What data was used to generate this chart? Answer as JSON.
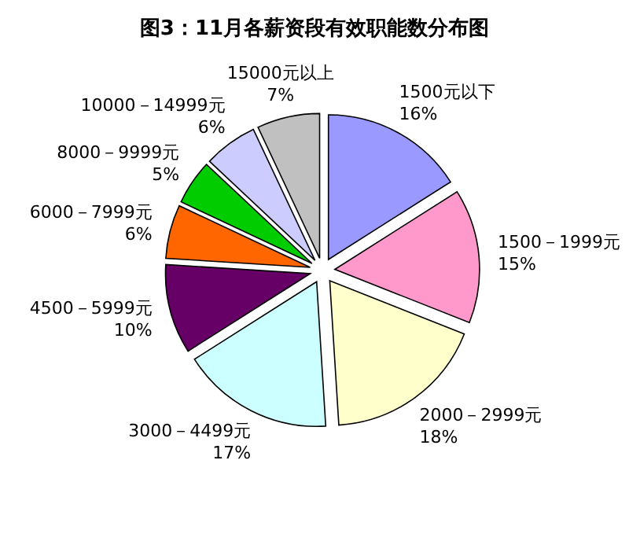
{
  "chart_data": {
    "type": "pie",
    "title": "图3：11月各薪资段有效职能数分布图",
    "categories": [
      "1500元以下",
      "1500－1999元",
      "2000－2999元",
      "3000－4499元",
      "4500－5999元",
      "6000－7999元",
      "8000－9999元",
      "10000－14999元",
      "15000元以上"
    ],
    "values": [
      16,
      15,
      18,
      17,
      10,
      6,
      5,
      6,
      7
    ],
    "value_labels": [
      "16%",
      "15%",
      "18%",
      "17%",
      "10%",
      "6%",
      "5%",
      "6%",
      "7%"
    ],
    "colors": [
      "#9999ff",
      "#ff99cc",
      "#ffffcc",
      "#ccffff",
      "#660066",
      "#ff6600",
      "#00cc00",
      "#ccccff",
      "#c0c0c0"
    ]
  }
}
